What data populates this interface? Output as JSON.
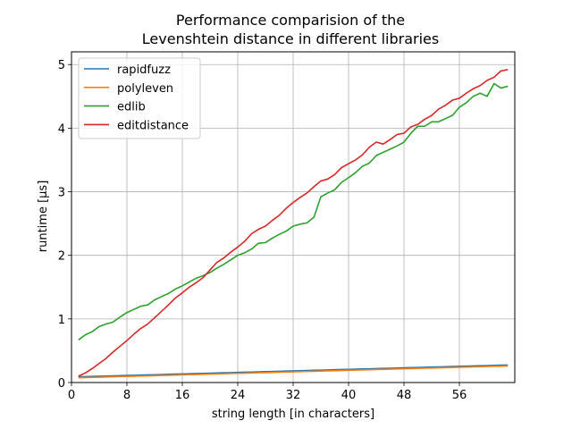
{
  "chart_data": {
    "type": "line",
    "title_lines": [
      "Performance comparision of the",
      "Levenshtein distance in different libraries"
    ],
    "xlabel": "string length [in characters]",
    "ylabel": "runtime [µs]",
    "xlim": [
      0,
      64
    ],
    "ylim": [
      0,
      5.2
    ],
    "xticks": [
      0,
      8,
      16,
      24,
      32,
      40,
      48,
      56
    ],
    "yticks": [
      0,
      1,
      2,
      3,
      4,
      5
    ],
    "grid": true,
    "legend_position": "top-left",
    "x": [
      1,
      2,
      3,
      4,
      5,
      6,
      7,
      8,
      9,
      10,
      11,
      12,
      13,
      14,
      15,
      16,
      17,
      18,
      19,
      20,
      21,
      22,
      23,
      24,
      25,
      26,
      27,
      28,
      29,
      30,
      31,
      32,
      33,
      34,
      35,
      36,
      37,
      38,
      39,
      40,
      41,
      42,
      43,
      44,
      45,
      46,
      47,
      48,
      49,
      50,
      51,
      52,
      53,
      54,
      55,
      56,
      57,
      58,
      59,
      60,
      61,
      62,
      63
    ],
    "series": [
      {
        "name": "rapidfuzz",
        "color": "#1f77b4",
        "values": [
          0.09,
          0.093,
          0.096,
          0.099,
          0.102,
          0.105,
          0.108,
          0.111,
          0.114,
          0.117,
          0.12,
          0.123,
          0.126,
          0.129,
          0.132,
          0.135,
          0.138,
          0.141,
          0.144,
          0.147,
          0.15,
          0.153,
          0.156,
          0.159,
          0.162,
          0.165,
          0.168,
          0.171,
          0.174,
          0.177,
          0.18,
          0.183,
          0.186,
          0.189,
          0.192,
          0.195,
          0.198,
          0.201,
          0.204,
          0.207,
          0.21,
          0.213,
          0.216,
          0.219,
          0.222,
          0.225,
          0.228,
          0.231,
          0.234,
          0.237,
          0.24,
          0.243,
          0.246,
          0.249,
          0.252,
          0.255,
          0.258,
          0.261,
          0.264,
          0.267,
          0.27,
          0.273,
          0.275
        ]
      },
      {
        "name": "polyleven",
        "color": "#ff7f0e",
        "values": [
          0.075,
          0.078,
          0.081,
          0.084,
          0.087,
          0.09,
          0.093,
          0.096,
          0.099,
          0.102,
          0.105,
          0.108,
          0.111,
          0.114,
          0.117,
          0.12,
          0.123,
          0.126,
          0.129,
          0.132,
          0.135,
          0.138,
          0.141,
          0.144,
          0.147,
          0.15,
          0.153,
          0.156,
          0.159,
          0.162,
          0.165,
          0.168,
          0.171,
          0.174,
          0.177,
          0.18,
          0.183,
          0.186,
          0.189,
          0.192,
          0.195,
          0.198,
          0.201,
          0.204,
          0.207,
          0.21,
          0.213,
          0.216,
          0.219,
          0.222,
          0.225,
          0.228,
          0.231,
          0.234,
          0.237,
          0.24,
          0.243,
          0.246,
          0.249,
          0.252,
          0.255,
          0.258,
          0.261
        ]
      },
      {
        "name": "edlib",
        "color": "#2ca02c",
        "values": [
          0.67,
          0.75,
          0.8,
          0.88,
          0.92,
          0.95,
          1.03,
          1.1,
          1.15,
          1.2,
          1.22,
          1.3,
          1.35,
          1.4,
          1.47,
          1.52,
          1.58,
          1.64,
          1.68,
          1.73,
          1.8,
          1.86,
          1.93,
          2.0,
          2.04,
          2.1,
          2.19,
          2.2,
          2.27,
          2.33,
          2.38,
          2.46,
          2.49,
          2.51,
          2.6,
          2.92,
          2.98,
          3.03,
          3.15,
          3.22,
          3.3,
          3.4,
          3.45,
          3.57,
          3.62,
          3.67,
          3.72,
          3.78,
          3.92,
          4.03,
          4.03,
          4.1,
          4.1,
          4.15,
          4.2,
          4.33,
          4.4,
          4.5,
          4.55,
          4.5,
          4.7,
          4.63,
          4.66
        ]
      },
      {
        "name": "editdistance",
        "color": "#d62728",
        "values": [
          0.1,
          0.15,
          0.22,
          0.3,
          0.38,
          0.48,
          0.57,
          0.66,
          0.76,
          0.85,
          0.92,
          1.02,
          1.12,
          1.22,
          1.33,
          1.41,
          1.5,
          1.57,
          1.65,
          1.77,
          1.89,
          1.96,
          2.05,
          2.13,
          2.22,
          2.34,
          2.41,
          2.46,
          2.55,
          2.63,
          2.74,
          2.83,
          2.91,
          2.98,
          3.08,
          3.17,
          3.2,
          3.27,
          3.38,
          3.44,
          3.5,
          3.58,
          3.7,
          3.78,
          3.75,
          3.82,
          3.9,
          3.92,
          4.02,
          4.06,
          4.14,
          4.2,
          4.3,
          4.36,
          4.44,
          4.47,
          4.55,
          4.62,
          4.67,
          4.75,
          4.8,
          4.9,
          4.92
        ]
      }
    ]
  }
}
